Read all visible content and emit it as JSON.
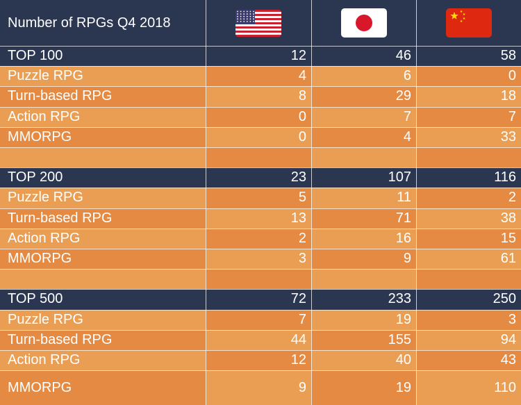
{
  "chart_data": {
    "type": "table",
    "title": "Number of RPGs Q4 2018",
    "columns": [
      {
        "flag": "us-flag-icon"
      },
      {
        "flag": "japan-flag-icon"
      },
      {
        "flag": "china-flag-icon"
      }
    ],
    "sections": [
      {
        "label": "TOP 100",
        "values": [
          12,
          46,
          58
        ],
        "rows": [
          {
            "label": "Puzzle RPG",
            "values": [
              4,
              6,
              0
            ]
          },
          {
            "label": "Turn-based RPG",
            "values": [
              8,
              29,
              18
            ]
          },
          {
            "label": "Action RPG",
            "values": [
              0,
              7,
              7
            ]
          },
          {
            "label": "MMORPG",
            "values": [
              0,
              4,
              33
            ]
          }
        ]
      },
      {
        "label": "TOP 200",
        "values": [
          23,
          107,
          116
        ],
        "rows": [
          {
            "label": "Puzzle RPG",
            "values": [
              5,
              11,
              2
            ]
          },
          {
            "label": "Turn-based RPG",
            "values": [
              13,
              71,
              38
            ]
          },
          {
            "label": "Action RPG",
            "values": [
              2,
              16,
              15
            ]
          },
          {
            "label": "MMORPG",
            "values": [
              3,
              9,
              61
            ]
          }
        ]
      },
      {
        "label": "TOP 500",
        "values": [
          72,
          233,
          250
        ],
        "rows": [
          {
            "label": "Puzzle RPG",
            "values": [
              7,
              19,
              3
            ]
          },
          {
            "label": "Turn-based RPG",
            "values": [
              44,
              155,
              94
            ]
          },
          {
            "label": "Action RPG",
            "values": [
              12,
              40,
              43
            ]
          },
          {
            "label": "MMORPG",
            "values": [
              9,
              19,
              110
            ]
          }
        ]
      }
    ]
  },
  "colors": {
    "header": "#2b3651",
    "section": "#2b3651",
    "row_light": "#e99e54",
    "row_dark": "#e48a42",
    "text": "#ffffff"
  }
}
